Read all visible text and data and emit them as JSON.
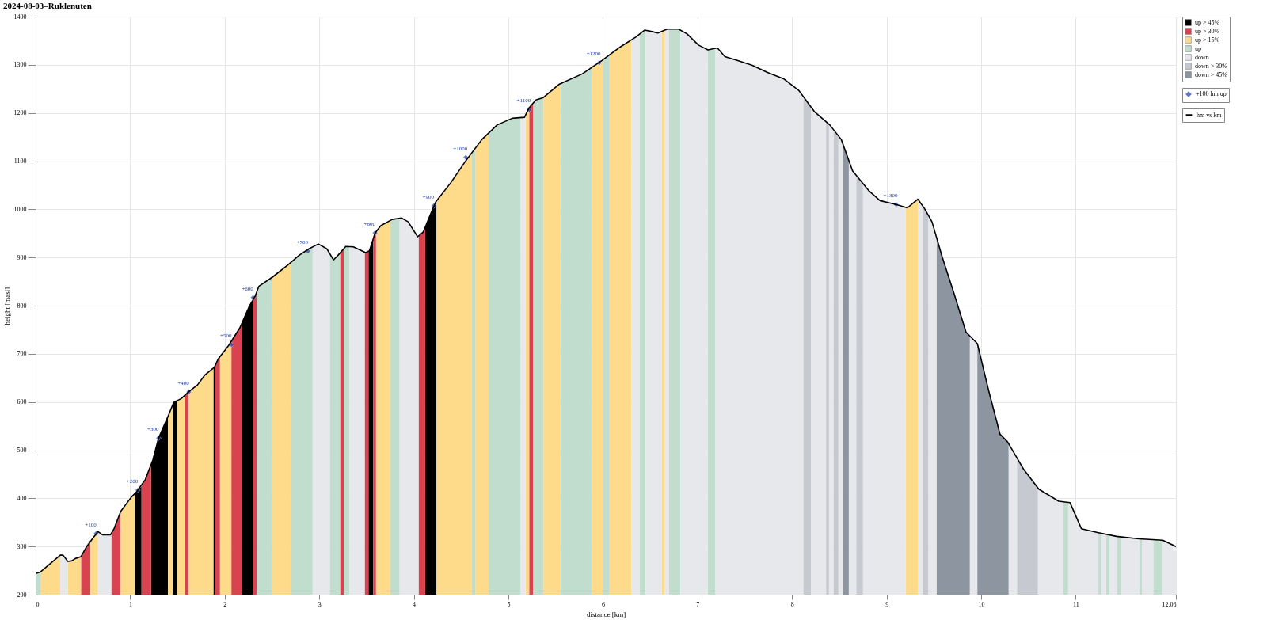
{
  "chart_data": {
    "type": "area",
    "title": "2024-08-03–Ruklenuten",
    "xlabel": "distance [km]",
    "ylabel": "height [masl]",
    "xlim": [
      0,
      12.06
    ],
    "xticks": [
      0,
      1,
      2,
      3,
      4,
      5,
      6,
      7,
      8,
      9,
      10,
      11,
      12.06
    ],
    "ylim": [
      200,
      1400
    ],
    "yticks": [
      200,
      300,
      400,
      500,
      600,
      700,
      800,
      900,
      1000,
      1100,
      1200,
      1300,
      1400
    ],
    "grid": true,
    "legend": "top right",
    "annotations": [
      {
        "text": "+100",
        "x": 0.64,
        "y": 327
      },
      {
        "text": "+200",
        "x": 1.08,
        "y": 417
      },
      {
        "text": "+300",
        "x": 1.3,
        "y": 525
      },
      {
        "text": "+400",
        "x": 1.62,
        "y": 621
      },
      {
        "text": "+500",
        "x": 2.07,
        "y": 719
      },
      {
        "text": "+600",
        "x": 2.3,
        "y": 817
      },
      {
        "text": "+700",
        "x": 2.88,
        "y": 913
      },
      {
        "text": "+800",
        "x": 3.59,
        "y": 951
      },
      {
        "text": "+900",
        "x": 4.21,
        "y": 1007
      },
      {
        "text": "+1000",
        "x": 4.55,
        "y": 1108
      },
      {
        "text": "+1100",
        "x": 5.22,
        "y": 1207
      },
      {
        "text": "+1200",
        "x": 5.96,
        "y": 1304
      },
      {
        "text": "+1300",
        "x": 9.1,
        "y": 1010
      }
    ],
    "series": [
      {
        "name": "+100 hm up",
        "type": "scatter",
        "marker": "diamond",
        "color": "#1f3fa8",
        "x": [
          0.64,
          1.08,
          1.3,
          1.62,
          2.07,
          2.3,
          2.88,
          3.59,
          4.21,
          4.55,
          5.22,
          5.96,
          9.1
        ],
        "values": [
          327,
          417,
          525,
          621,
          719,
          817,
          913,
          951,
          1007,
          1108,
          1207,
          1304,
          1010
        ]
      },
      {
        "name": "hm vs km",
        "type": "line",
        "color": "#000000",
        "x": [
          0,
          0.05,
          0.26,
          0.29,
          0.34,
          0.38,
          0.42,
          0.48,
          0.54,
          0.6,
          0.66,
          0.71,
          0.79,
          0.83,
          0.9,
          1.01,
          1.07,
          1.16,
          1.24,
          1.3,
          1.4,
          1.46,
          1.54,
          1.63,
          1.71,
          1.79,
          1.89,
          1.93,
          2.04,
          2.16,
          2.26,
          2.32,
          2.36,
          2.51,
          2.67,
          2.79,
          2.89,
          2.99,
          3.08,
          3.15,
          3.2,
          3.28,
          3.36,
          3.49,
          3.53,
          3.59,
          3.65,
          3.77,
          3.87,
          3.94,
          4.04,
          4.1,
          4.16,
          4.23,
          4.39,
          4.55,
          4.72,
          4.88,
          5.04,
          5.17,
          5.22,
          5.29,
          5.37,
          5.54,
          5.78,
          5.99,
          6.19,
          6.35,
          6.44,
          6.52,
          6.58,
          6.68,
          6.8,
          6.89,
          7.01,
          7.11,
          7.21,
          7.29,
          7.42,
          7.58,
          7.74,
          7.91,
          8.07,
          8.24,
          8.4,
          8.52,
          8.64,
          8.81,
          8.93,
          9.1,
          9.22,
          9.33,
          9.4,
          9.48,
          9.59,
          9.71,
          9.84,
          9.96,
          10.08,
          10.2,
          10.28,
          10.45,
          10.61,
          10.82,
          10.94,
          11.06,
          11.23,
          11.43,
          11.67,
          11.92,
          12.06
        ],
        "values": [
          244,
          247,
          282,
          282,
          269,
          270,
          275,
          279,
          300,
          316,
          331,
          324,
          324,
          337,
          373,
          402,
          414,
          439,
          480,
          525,
          570,
          599,
          607,
          623,
          635,
          656,
          672,
          689,
          717,
          754,
          799,
          819,
          840,
          860,
          885,
          905,
          918,
          928,
          918,
          895,
          905,
          923,
          922,
          910,
          914,
          951,
          966,
          979,
          982,
          974,
          943,
          953,
          982,
          1015,
          1055,
          1101,
          1145,
          1175,
          1189,
          1191,
          1211,
          1227,
          1232,
          1260,
          1281,
          1309,
          1338,
          1358,
          1372,
          1369,
          1366,
          1374,
          1374,
          1364,
          1341,
          1331,
          1335,
          1317,
          1309,
          1299,
          1284,
          1271,
          1247,
          1202,
          1175,
          1145,
          1080,
          1039,
          1018,
          1010,
          1003,
          1021,
          1002,
          974,
          900,
          827,
          745,
          721,
          623,
          533,
          517,
          460,
          419,
          394,
          391,
          337,
          329,
          321,
          316,
          313,
          300
        ]
      },
      {
        "name": "up > 45%",
        "color": "#000000",
        "x": [
          1.05,
          1.07,
          1.12,
          null,
          1.22,
          1.24,
          1.3,
          1.4,
          null,
          1.45,
          1.46,
          1.5,
          null,
          1.88,
          1.9,
          null,
          2.18,
          2.26,
          2.3,
          null,
          3.52,
          3.53,
          3.57,
          null,
          4.12,
          4.16,
          4.23,
          4.24
        ],
        "values": [
          410,
          414,
          425,
          null,
          470,
          480,
          525,
          570,
          null,
          594,
          599,
          603,
          null,
          670,
          676,
          null,
          763,
          799,
          812,
          null,
          913,
          914,
          939,
          null,
          963,
          982,
          1015,
          1018
        ]
      },
      {
        "name": "up > 30%",
        "color": "#d9434f",
        "x": [
          0.48,
          0.54,
          0.58,
          null,
          0.8,
          0.83,
          0.9,
          null,
          1.12,
          1.16,
          1.22,
          null,
          1.58,
          1.62,
          null,
          1.9,
          1.93,
          1.95,
          null,
          2.07,
          2.16,
          2.18,
          null,
          2.3,
          2.32,
          2.34,
          null,
          3.22,
          3.26,
          null,
          3.48,
          3.49,
          3.52,
          null,
          3.57,
          3.59,
          3.6,
          null,
          4.05,
          4.1,
          4.12,
          null,
          5.22,
          5.26
        ],
        "values": [
          279,
          300,
          311,
          null,
          327,
          337,
          373,
          null,
          425,
          439,
          470,
          null,
          614,
          621,
          null,
          676,
          689,
          694,
          null,
          726,
          754,
          763,
          null,
          812,
          819,
          830,
          null,
          910,
          918,
          null,
          911,
          910,
          913,
          null,
          939,
          951,
          954,
          null,
          945,
          953,
          963,
          null,
          1211,
          1220
        ]
      },
      {
        "name": "up > 15%",
        "color": "#fddb8b",
        "x": [
          0.05,
          0.26,
          null,
          0.34,
          0.38,
          0.42,
          0.48,
          null,
          0.58,
          0.6,
          0.66,
          null,
          0.9,
          1.01,
          1.05,
          null,
          1.4,
          1.45,
          null,
          1.5,
          1.54,
          1.58,
          null,
          1.62,
          1.63,
          1.71,
          1.79,
          1.88,
          null,
          1.95,
          2.04,
          2.07,
          null,
          2.5,
          2.51,
          2.67,
          2.7,
          null,
          3.6,
          3.65,
          3.75,
          null,
          4.24,
          4.39,
          4.55,
          4.61,
          null,
          4.65,
          4.72,
          4.79,
          null,
          5.18,
          5.22,
          null,
          5.37,
          5.54,
          5.55,
          null,
          5.88,
          5.99,
          6.0,
          null,
          6.07,
          6.19,
          6.3,
          null,
          6.62,
          6.65,
          null,
          9.2,
          9.22,
          9.33
        ],
        "values": [
          247,
          282,
          null,
          269,
          270,
          275,
          279,
          null,
          311,
          316,
          331,
          null,
          373,
          402,
          410,
          null,
          570,
          594,
          null,
          603,
          607,
          614,
          null,
          621,
          623,
          635,
          656,
          670,
          null,
          694,
          717,
          726,
          null,
          859,
          860,
          885,
          890,
          null,
          954,
          966,
          977,
          null,
          1018,
          1055,
          1101,
          1117,
          null,
          1127,
          1145,
          1158,
          null,
          1195,
          1211,
          null,
          1232,
          1260,
          1261,
          null,
          1294,
          1309,
          1310,
          null,
          1321,
          1338,
          1352,
          null,
          1369,
          1372,
          null,
          1004,
          1003,
          1021
        ]
      },
      {
        "name": "up",
        "color": "#c1ddcd",
        "x": [
          0,
          0.05,
          null,
          2.34,
          2.36,
          2.5,
          null,
          2.7,
          2.79,
          2.89,
          2.93,
          null,
          3.11,
          3.15,
          3.2,
          3.22,
          null,
          3.26,
          3.28,
          3.32,
          null,
          3.75,
          3.77,
          3.85,
          null,
          4.61,
          4.65,
          null,
          4.79,
          4.88,
          5.04,
          5.13,
          null,
          5.26,
          5.29,
          5.37,
          null,
          5.55,
          5.78,
          5.88,
          null,
          6.0,
          6.07,
          null,
          6.39,
          6.44,
          6.45,
          null,
          6.7,
          6.8,
          6.82,
          null,
          7.11,
          7.19,
          null,
          10.87,
          10.92,
          null,
          11.24,
          11.27,
          null,
          11.32,
          11.36,
          null,
          11.44,
          11.48,
          null,
          11.67,
          11.7,
          null,
          11.82,
          11.91
        ],
        "values": [
          244,
          247,
          null,
          830,
          840,
          859,
          null,
          890,
          905,
          918,
          922,
          null,
          908,
          895,
          905,
          910,
          null,
          918,
          923,
          923,
          null,
          977,
          979,
          981,
          null,
          1117,
          1127,
          null,
          1158,
          1175,
          1189,
          1190,
          null,
          1220,
          1227,
          1232,
          null,
          1261,
          1281,
          1294,
          null,
          1310,
          1321,
          null,
          1364,
          1372,
          1372,
          null,
          1374,
          1374,
          1372,
          null,
          1331,
          1334,
          null,
          393,
          392,
          null,
          329,
          327,
          null,
          326,
          324,
          null,
          321,
          320,
          null,
          316,
          316,
          null,
          314,
          313
        ]
      },
      {
        "name": "down",
        "color": "#e7e8ec",
        "x": [
          0.26,
          0.29,
          0.34,
          null,
          0.66,
          0.71,
          0.79,
          0.8,
          null,
          2.93,
          2.99,
          3.08,
          3.11,
          null,
          3.32,
          3.36,
          3.48,
          null,
          3.85,
          3.87,
          3.94,
          4.04,
          4.05,
          null,
          5.13,
          5.17,
          5.18,
          null,
          6.3,
          6.35,
          6.39,
          null,
          6.45,
          6.52,
          6.58,
          6.62,
          null,
          6.65,
          6.68,
          6.7,
          null,
          6.82,
          6.89,
          7.01,
          7.11,
          null,
          7.19,
          7.21,
          7.29,
          7.42,
          7.58,
          7.74,
          7.91,
          8.07,
          8.12,
          null,
          8.2,
          8.24,
          8.36,
          null,
          8.39,
          8.4,
          8.44,
          null,
          8.49,
          8.52,
          8.54,
          null,
          8.6,
          8.64,
          8.68,
          null,
          8.75,
          8.81,
          8.93,
          9.1,
          9.2,
          null,
          9.33,
          9.38,
          null,
          9.44,
          9.48,
          9.53,
          null,
          9.88,
          9.96,
          null,
          10.29,
          10.38,
          null,
          10.6,
          10.61,
          10.82,
          10.87,
          null,
          10.92,
          10.94,
          11.06,
          11.23,
          11.24,
          null,
          11.27,
          11.32,
          null,
          11.36,
          11.43,
          11.44,
          null,
          11.48,
          11.67,
          null,
          11.7,
          11.82,
          null,
          11.91,
          12.06
        ],
        "values": [
          282,
          282,
          269,
          null,
          331,
          324,
          324,
          327,
          null,
          922,
          928,
          918,
          908,
          null,
          923,
          922,
          911,
          null,
          981,
          982,
          974,
          943,
          945,
          null,
          1190,
          1191,
          1195,
          null,
          1352,
          1358,
          1364,
          null,
          1372,
          1369,
          1366,
          1369,
          null,
          1372,
          1374,
          1374,
          null,
          1372,
          1364,
          1341,
          1331,
          null,
          1334,
          1335,
          1317,
          1309,
          1299,
          1284,
          1271,
          1247,
          1234,
          null,
          1213,
          1202,
          1182,
          null,
          1177,
          1175,
          1165,
          null,
          1153,
          1145,
          1134,
          null,
          1102,
          1080,
          1070,
          null,
          1053,
          1039,
          1018,
          1010,
          1004,
          null,
          1021,
          1007,
          null,
          988,
          974,
          940,
          null,
          737,
          721,
          null,
          514,
          483,
          null,
          422,
          419,
          394,
          393,
          null,
          392,
          391,
          337,
          329,
          329,
          null,
          327,
          326,
          null,
          324,
          321,
          321,
          null,
          320,
          316,
          null,
          316,
          314,
          null,
          313,
          300
        ]
      },
      {
        "name": "down > 30%",
        "color": "#c6c9d0",
        "x": [
          8.12,
          8.2,
          null,
          8.36,
          8.39,
          null,
          8.44,
          8.49,
          null,
          8.68,
          8.75,
          null,
          9.38,
          9.4,
          9.44,
          null,
          10.38,
          10.45,
          10.6
        ],
        "values": [
          1234,
          1213,
          null,
          1182,
          1177,
          null,
          1165,
          1153,
          null,
          1070,
          1053,
          null,
          1007,
          1002,
          988,
          null,
          483,
          460,
          422
        ]
      },
      {
        "name": "down > 45%",
        "color": "#8d95a1",
        "x": [
          8.54,
          8.6,
          null,
          9.53,
          9.59,
          9.71,
          9.84,
          9.88,
          null,
          9.96,
          10.08,
          10.2,
          10.28,
          10.29
        ],
        "values": [
          1134,
          1102,
          null,
          940,
          900,
          827,
          745,
          737,
          null,
          721,
          623,
          533,
          517,
          514
        ]
      }
    ]
  }
}
